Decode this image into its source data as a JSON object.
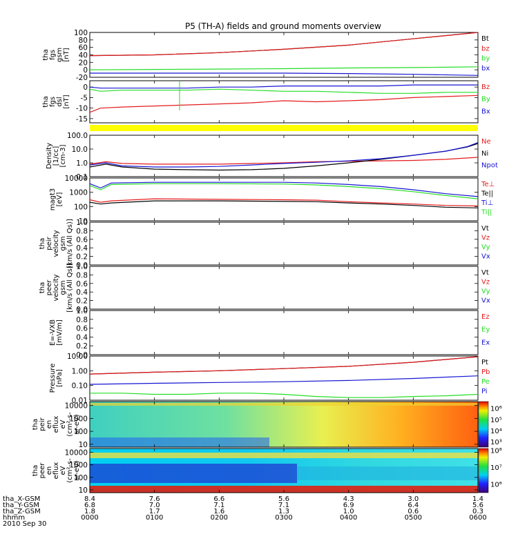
{
  "title": "P5 (TH-A) fields and ground moments overview",
  "colors": {
    "black": "#000000",
    "red": "#e41a1c",
    "green": "#22dd22",
    "blue": "#1414d2",
    "yellow": "#ffff00"
  },
  "chart_data": [
    {
      "type": "line",
      "id": "fgs_gsm",
      "ylabel_lines": [
        "tha",
        "fgs",
        "gsm",
        "[nT]"
      ],
      "ylim": [
        -20,
        100
      ],
      "ytick_labels": [
        "100",
        "80",
        "60",
        "40",
        "20",
        "0",
        "-20"
      ],
      "ytick_values": [
        100,
        80,
        60,
        40,
        20,
        0,
        -20
      ],
      "legend": [
        {
          "name": "Bt",
          "color": "black"
        },
        {
          "name": "bz",
          "color": "red"
        },
        {
          "name": "by",
          "color": "green"
        },
        {
          "name": "bx",
          "color": "blue"
        }
      ],
      "series": [
        {
          "name": "Bt",
          "color": "black",
          "x": [
            0,
            60,
            120,
            180,
            240,
            300,
            360
          ],
          "y": [
            38,
            40,
            46,
            55,
            66,
            83,
            110
          ]
        },
        {
          "name": "bz",
          "color": "red",
          "x": [
            0,
            60,
            120,
            180,
            240,
            300,
            360
          ],
          "y": [
            38,
            40,
            46,
            55,
            66,
            83,
            110
          ]
        },
        {
          "name": "by",
          "color": "green",
          "x": [
            0,
            60,
            120,
            180,
            240,
            300,
            360
          ],
          "y": [
            0,
            1,
            2,
            3,
            5,
            6,
            8
          ]
        },
        {
          "name": "bx",
          "color": "blue",
          "x": [
            0,
            60,
            120,
            180,
            240,
            300,
            360
          ],
          "y": [
            -9,
            -9,
            -9,
            -9,
            -10,
            -12,
            -15
          ]
        }
      ]
    },
    {
      "type": "line",
      "id": "fgs_dsl",
      "ylabel_lines": [
        "tha",
        "fgs",
        "dsl",
        "[nT]"
      ],
      "ylim": [
        -17,
        3
      ],
      "ytick_labels": [
        "0",
        "-5",
        "-10",
        "-15"
      ],
      "ytick_values": [
        0,
        -5,
        -10,
        -15
      ],
      "legend": [
        {
          "name": "Bz",
          "color": "red"
        },
        {
          "name": "By",
          "color": "green"
        },
        {
          "name": "Bx",
          "color": "blue"
        }
      ],
      "series": [
        {
          "name": "Bz",
          "color": "red",
          "x": [
            0,
            10,
            30,
            60,
            90,
            120,
            150,
            180,
            210,
            240,
            270,
            300,
            330,
            360
          ],
          "y": [
            -12,
            -10,
            -9.5,
            -9,
            -8.5,
            -8,
            -7.5,
            -6.5,
            -7,
            -6.5,
            -6,
            -5,
            -4.5,
            -4
          ]
        },
        {
          "name": "By",
          "color": "green",
          "x": [
            0,
            10,
            30,
            60,
            90,
            120,
            150,
            180,
            210,
            240,
            270,
            300,
            330,
            360
          ],
          "y": [
            -1,
            -2,
            -1.5,
            -1.5,
            -1.5,
            -1,
            -1.5,
            -2,
            -2,
            -2.5,
            -3,
            -3,
            -2.5,
            -2.5
          ]
        },
        {
          "name": "Bx",
          "color": "blue",
          "x": [
            0,
            10,
            30,
            60,
            90,
            120,
            150,
            180,
            210,
            240,
            270,
            300,
            330,
            360
          ],
          "y": [
            0,
            -0.5,
            -0.5,
            -0.5,
            -0.5,
            0,
            0,
            0.5,
            0.5,
            0.5,
            0.5,
            1,
            1,
            1
          ]
        }
      ]
    },
    {
      "type": "line",
      "id": "density",
      "ylabel_lines": [
        "Density",
        "[1/cc]",
        "[cm-3]"
      ],
      "yscale": "log",
      "ylim": [
        0.1,
        100
      ],
      "ytick_labels": [
        "100.0",
        "10.0",
        "1.0",
        "0.1"
      ],
      "ytick_values": [
        100,
        10,
        1,
        0.1
      ],
      "legend": [
        {
          "name": "Ne",
          "color": "red"
        },
        {
          "name": "Ni",
          "color": "black"
        },
        {
          "name": "Npot",
          "color": "blue"
        }
      ],
      "series": [
        {
          "name": "Ne",
          "color": "red",
          "x": [
            0,
            15,
            30,
            60,
            90,
            120,
            150,
            180,
            210,
            240,
            270,
            300,
            330,
            360
          ],
          "y": [
            0.8,
            1.2,
            0.9,
            0.8,
            0.8,
            0.8,
            0.9,
            1.0,
            1.2,
            1.3,
            1.4,
            1.5,
            1.8,
            2.5
          ]
        },
        {
          "name": "Ni",
          "color": "black",
          "x": [
            0,
            15,
            30,
            60,
            90,
            120,
            150,
            180,
            210,
            240,
            270,
            300,
            330,
            350,
            360
          ],
          "y": [
            0.5,
            0.8,
            0.5,
            0.35,
            0.32,
            0.3,
            0.32,
            0.4,
            0.6,
            1.0,
            1.8,
            3.5,
            7.0,
            14,
            25
          ]
        },
        {
          "name": "Npot",
          "color": "blue",
          "x": [
            0,
            15,
            30,
            60,
            90,
            120,
            150,
            180,
            210,
            240,
            270,
            300,
            330,
            350,
            360
          ],
          "y": [
            0.7,
            1.0,
            0.6,
            0.5,
            0.5,
            0.55,
            0.7,
            0.9,
            1.1,
            1.4,
            2.0,
            3.5,
            7.0,
            15,
            30
          ]
        }
      ]
    },
    {
      "type": "line",
      "id": "temperature",
      "ylabel_lines": [
        "magt3",
        "[eV]"
      ],
      "yscale": "log",
      "ylim": [
        10,
        10000
      ],
      "ytick_labels": [
        "10000",
        "1000",
        "100",
        "10"
      ],
      "ytick_values": [
        10000,
        1000,
        100,
        10
      ],
      "legend": [
        {
          "name": "Te⊥",
          "color": "red"
        },
        {
          "name": "Te||",
          "color": "black"
        },
        {
          "name": "Ti⊥",
          "color": "blue"
        },
        {
          "name": "Ti||",
          "color": "green"
        }
      ],
      "series": [
        {
          "name": "Te⊥",
          "color": "red",
          "x": [
            0,
            10,
            20,
            60,
            120,
            180,
            210,
            240,
            270,
            300,
            330,
            360
          ],
          "y": [
            300,
            200,
            250,
            350,
            320,
            300,
            280,
            220,
            180,
            150,
            120,
            110
          ]
        },
        {
          "name": "Te||",
          "color": "black",
          "x": [
            0,
            10,
            20,
            60,
            120,
            180,
            210,
            240,
            270,
            300,
            330,
            360
          ],
          "y": [
            200,
            150,
            180,
            250,
            250,
            230,
            220,
            180,
            150,
            120,
            90,
            80
          ]
        },
        {
          "name": "Ti⊥",
          "color": "blue",
          "x": [
            0,
            10,
            20,
            60,
            120,
            180,
            210,
            240,
            270,
            300,
            330,
            360
          ],
          "y": [
            4000,
            2000,
            4500,
            5000,
            5000,
            5000,
            4500,
            3500,
            2500,
            1500,
            800,
            500
          ]
        },
        {
          "name": "Ti||",
          "color": "green",
          "x": [
            0,
            10,
            20,
            60,
            120,
            180,
            210,
            240,
            270,
            300,
            330,
            360
          ],
          "y": [
            3000,
            1500,
            3500,
            4000,
            4000,
            3800,
            3300,
            2500,
            1800,
            1100,
            600,
            350
          ]
        }
      ]
    },
    {
      "type": "line",
      "id": "peir_velocity",
      "ylabel_lines": [
        "tha",
        "peir",
        "velocity",
        "gsm",
        "[km/s (All Qs)]"
      ],
      "ylim": [
        0,
        1
      ],
      "ytick_labels": [
        "1.0",
        "0.8",
        "0.6",
        "0.4",
        "0.2",
        "0.0"
      ],
      "ytick_values": [
        1.0,
        0.8,
        0.6,
        0.4,
        0.2,
        0.0
      ],
      "legend": [
        {
          "name": "Vt",
          "color": "black"
        },
        {
          "name": "Vz",
          "color": "red"
        },
        {
          "name": "Vy",
          "color": "green"
        },
        {
          "name": "Vx",
          "color": "blue"
        }
      ],
      "series": []
    },
    {
      "type": "line",
      "id": "peer_velocity",
      "ylabel_lines": [
        "tha",
        "peer",
        "velocity",
        "gsm",
        "[km/s (All Qs)]"
      ],
      "ylim": [
        0,
        1
      ],
      "ytick_labels": [
        "1.0",
        "0.8",
        "0.6",
        "0.4",
        "0.2",
        "0.0"
      ],
      "ytick_values": [
        1.0,
        0.8,
        0.6,
        0.4,
        0.2,
        0.0
      ],
      "legend": [
        {
          "name": "Vt",
          "color": "black"
        },
        {
          "name": "Vz",
          "color": "red"
        },
        {
          "name": "Vy",
          "color": "green"
        },
        {
          "name": "Vx",
          "color": "blue"
        }
      ],
      "series": []
    },
    {
      "type": "line",
      "id": "efield",
      "ylabel_lines": [
        "E=-VXB",
        "[mV/m]"
      ],
      "ylim": [
        0,
        1
      ],
      "ytick_labels": [
        "1.0",
        "0.8",
        "0.6",
        "0.4",
        "0.2",
        "0.0"
      ],
      "ytick_values": [
        1.0,
        0.8,
        0.6,
        0.4,
        0.2,
        0.0
      ],
      "legend": [
        {
          "name": "Ez",
          "color": "red"
        },
        {
          "name": "Ey",
          "color": "green"
        },
        {
          "name": "Ex",
          "color": "blue"
        }
      ],
      "series": []
    },
    {
      "type": "line",
      "id": "pressure",
      "ylabel_lines": [
        "Pressure",
        "[nPa]"
      ],
      "yscale": "log",
      "ylim": [
        0.01,
        10
      ],
      "ytick_labels": [
        "10.00",
        "1.00",
        "0.10",
        "0.01"
      ],
      "ytick_values": [
        10,
        1,
        0.1,
        0.01
      ],
      "legend": [
        {
          "name": "Pt",
          "color": "black"
        },
        {
          "name": "Pb",
          "color": "red"
        },
        {
          "name": "Pe",
          "color": "green"
        },
        {
          "name": "Pi",
          "color": "blue"
        }
      ],
      "series": [
        {
          "name": "Pt",
          "color": "black",
          "x": [
            0,
            60,
            120,
            180,
            240,
            300,
            360
          ],
          "y": [
            0.6,
            0.8,
            1.0,
            1.4,
            2.0,
            3.8,
            9.0
          ]
        },
        {
          "name": "Pb",
          "color": "red",
          "x": [
            0,
            60,
            120,
            180,
            240,
            300,
            360
          ],
          "y": [
            0.6,
            0.8,
            1.0,
            1.4,
            2.0,
            3.8,
            9.0
          ]
        },
        {
          "name": "Pe",
          "color": "green",
          "x": [
            0,
            30,
            60,
            90,
            120,
            150,
            180,
            210,
            240,
            270,
            300,
            330,
            360
          ],
          "y": [
            0.03,
            0.03,
            0.025,
            0.025,
            0.03,
            0.03,
            0.025,
            0.018,
            0.015,
            0.015,
            0.018,
            0.02,
            0.025
          ]
        },
        {
          "name": "Pi",
          "color": "blue",
          "x": [
            0,
            60,
            120,
            180,
            240,
            300,
            360
          ],
          "y": [
            0.12,
            0.14,
            0.16,
            0.18,
            0.22,
            0.3,
            0.45
          ]
        }
      ]
    },
    {
      "type": "heatmap",
      "id": "peir_spec",
      "ylabel_lines": [
        "tha",
        "peir",
        "en",
        "eflux",
        "eV",
        "(cm²-s-",
        "sr-eV)"
      ],
      "yscale": "log",
      "ylim": [
        6,
        20000
      ],
      "ytick_labels": [
        "10000",
        "1000",
        "100",
        "10"
      ],
      "ytick_values": [
        10000,
        1000,
        100,
        10
      ],
      "colorbar_labels": [
        "10⁶",
        "10⁵",
        "10⁴",
        "10³"
      ],
      "colorbar_values": [
        6,
        5,
        4,
        3
      ]
    },
    {
      "type": "heatmap",
      "id": "peer_spec",
      "ylabel_lines": [
        "tha",
        "peer",
        "en",
        "eflux",
        "eV",
        "(cm²-s-",
        "sr-eV)"
      ],
      "yscale": "log",
      "ylim": [
        6,
        20000
      ],
      "ytick_labels": [
        "10000",
        "1000",
        "100",
        "10"
      ],
      "ytick_values": [
        10000,
        1000,
        100,
        10
      ],
      "colorbar_labels": [
        "10⁸",
        "10⁷",
        "10⁶"
      ],
      "colorbar_values": [
        8,
        7,
        6
      ]
    }
  ],
  "xaxis": {
    "rows": [
      {
        "label": "tha_X-GSM",
        "values": [
          "8.4",
          "7.6",
          "6.6",
          "5.6",
          "4.3",
          "3.0",
          "1.4"
        ]
      },
      {
        "label": "tha_Y-GSM",
        "values": [
          "6.8",
          "7.0",
          "7.1",
          "7.1",
          "6.9",
          "6.4",
          "5.6"
        ]
      },
      {
        "label": "tha_Z-GSM",
        "values": [
          "1.8",
          "1.7",
          "1.6",
          "1.3",
          "1.0",
          "0.6",
          "0.3"
        ]
      },
      {
        "label": "hhmm",
        "values": [
          "0000",
          "0100",
          "0200",
          "0300",
          "0400",
          "0500",
          "0600"
        ]
      }
    ],
    "date": "2010 Sep 30"
  }
}
